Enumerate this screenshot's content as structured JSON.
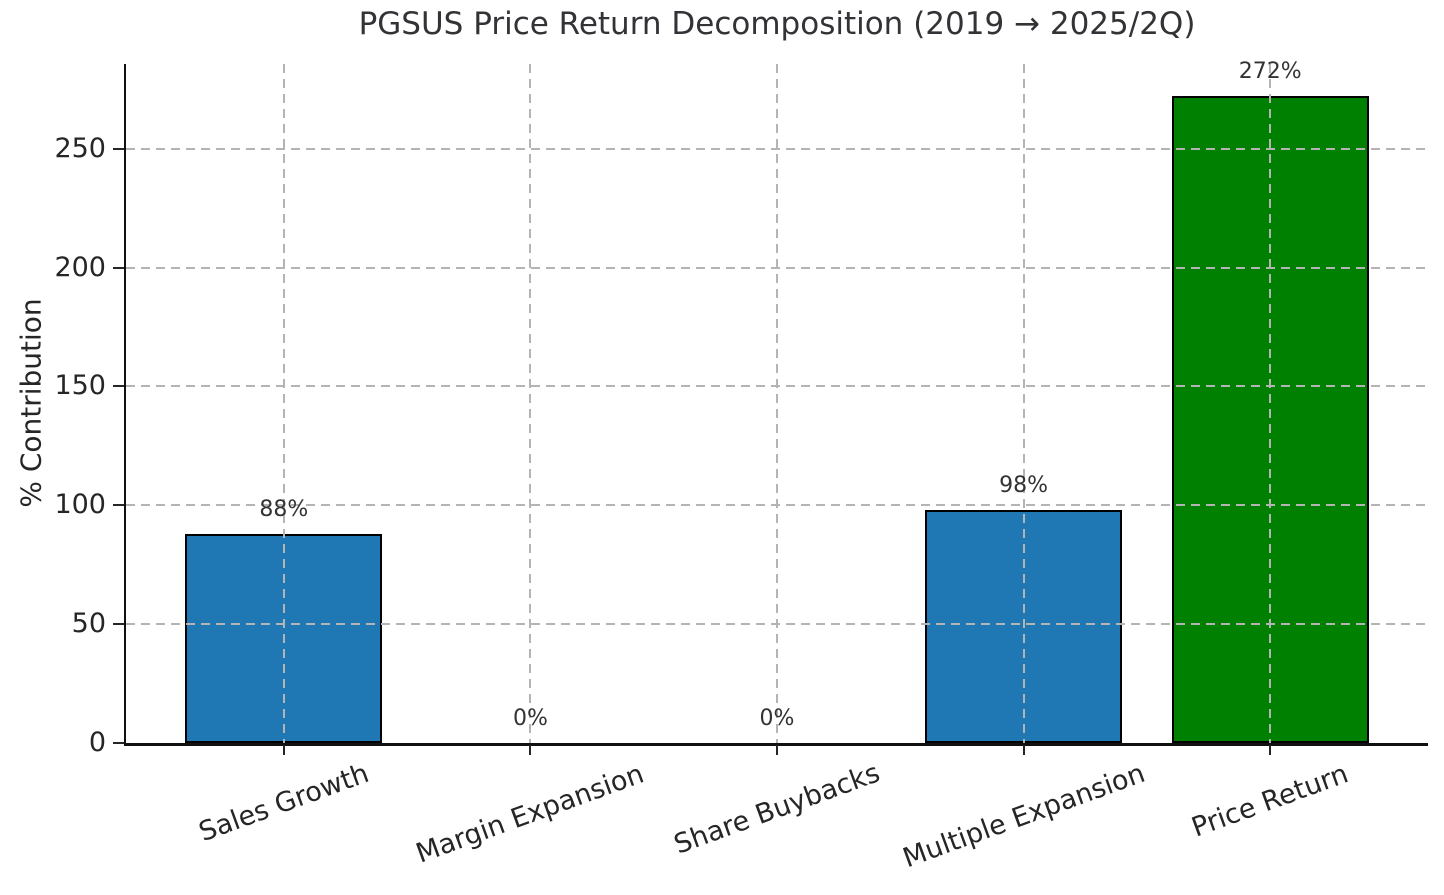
{
  "chart_data": {
    "type": "bar",
    "title": "PGSUS Price Return Decomposition (2019 → 2025/2Q)",
    "ylabel": "% Contribution",
    "xlabel": "",
    "categories": [
      "Sales Growth",
      "Margin Expansion",
      "Share Buybacks",
      "Multiple Expansion",
      "Price Return"
    ],
    "values": [
      88,
      0,
      0,
      98,
      272
    ],
    "bar_labels": [
      "88%",
      "0%",
      "0%",
      "98%",
      "272%"
    ],
    "bar_colors": [
      "#1f77b4",
      "#1f77b4",
      "#1f77b4",
      "#1f77b4",
      "#008000"
    ],
    "yticks": [
      0,
      50,
      100,
      150,
      200,
      250
    ],
    "ylim": [
      0,
      285.6
    ],
    "x_axis_units": {
      "total_span": 5.28,
      "first_center_offset": 0.64,
      "bar_width": 0.8
    },
    "grid": {
      "visible": true,
      "style": "dashed",
      "axes": "both",
      "above_bars": true
    },
    "legend": "none",
    "colors": {
      "blue_bar": "#1f77b4",
      "green_bar": "#008000",
      "bar_edge": "#000000",
      "grid": "#b4b4b4",
      "spine": "#111111",
      "text": "#333333"
    }
  }
}
